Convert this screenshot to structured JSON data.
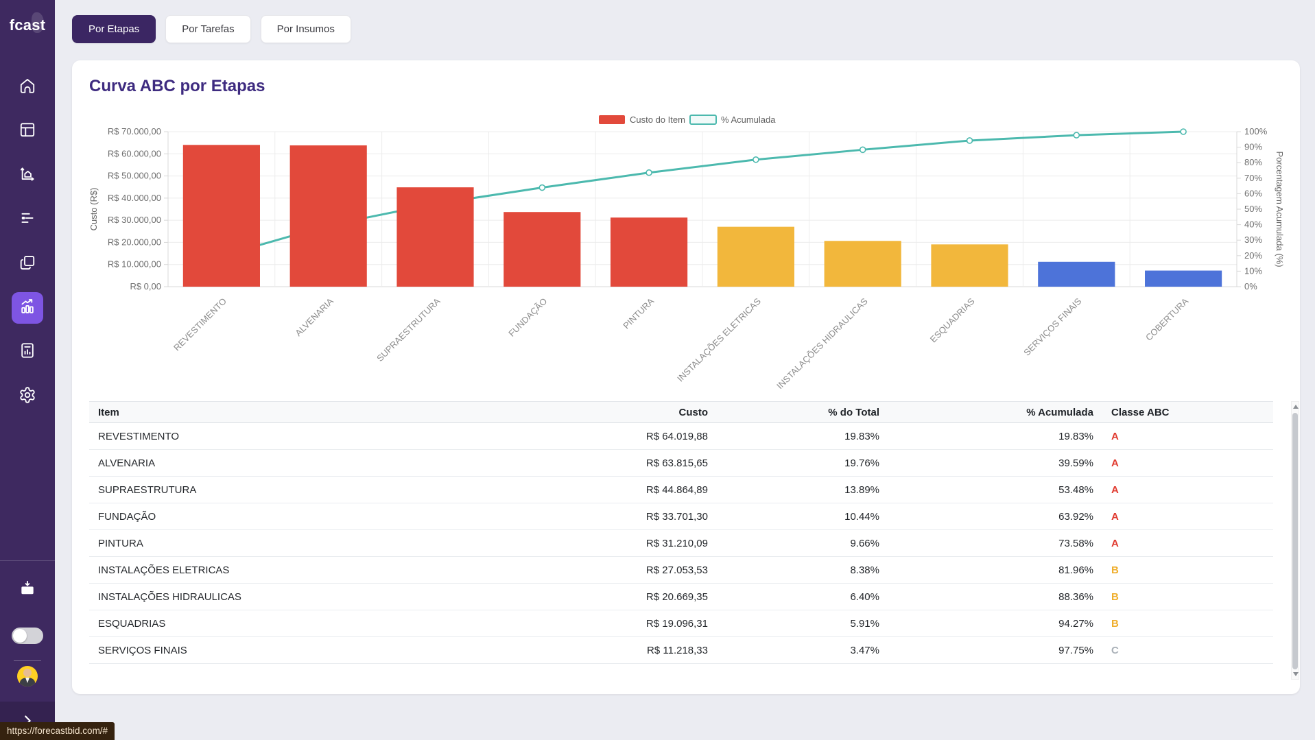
{
  "browser": {
    "status_url": "https://forecastbid.com/#"
  },
  "sidebar": {
    "logo": "fcast",
    "nav_items": [
      {
        "icon": "home"
      },
      {
        "icon": "layout"
      },
      {
        "icon": "planning"
      },
      {
        "icon": "gantt"
      },
      {
        "icon": "documents"
      },
      {
        "icon": "analytics",
        "active": true
      },
      {
        "icon": "report"
      },
      {
        "icon": "settings"
      }
    ],
    "bottom_items": [
      {
        "icon": "projects"
      }
    ]
  },
  "tabs": [
    {
      "label": "Por Etapas",
      "active": true
    },
    {
      "label": "Por Tarefas",
      "active": false
    },
    {
      "label": "Por Insumos",
      "active": false
    }
  ],
  "card": {
    "title": "Curva ABC por Etapas"
  },
  "chart_data": {
    "type": "pareto (bar + line)",
    "categories": [
      "REVESTIMENTO",
      "ALVENARIA",
      "SUPRAESTRUTURA",
      "FUNDAÇÃO",
      "PINTURA",
      "INSTALAÇÕES ELETRICAS",
      "INSTALAÇÕES HIDRAULICAS",
      "ESQUADRIAS",
      "SERVIÇOS FINAIS",
      "COBERTURA"
    ],
    "series": [
      {
        "name": "Custo do Item",
        "type": "bar",
        "values": [
          64019.88,
          63815.65,
          44864.89,
          33701.3,
          31210.09,
          27053.53,
          20669.35,
          19096.31,
          11218.33,
          7265.95
        ]
      },
      {
        "name": "% Acumulada",
        "type": "line",
        "values": [
          19.83,
          39.59,
          53.48,
          63.92,
          73.58,
          81.96,
          88.36,
          94.27,
          97.75,
          100
        ]
      }
    ],
    "bar_classes": [
      "A",
      "A",
      "A",
      "A",
      "A",
      "B",
      "B",
      "B",
      "C",
      "C"
    ],
    "class_colors": {
      "A": "#e2493b",
      "B": "#f2b73c",
      "C": "#4d73d9"
    },
    "line_color": "#4cb9ae",
    "left_axis": {
      "label": "Custo (R$)",
      "max": 70000,
      "tick_labels": [
        "R$ 0,00",
        "R$ 10.000,00",
        "R$ 20.000,00",
        "R$ 30.000,00",
        "R$ 40.000,00",
        "R$ 50.000,00",
        "R$ 60.000,00",
        "R$ 70.000,00"
      ]
    },
    "right_axis": {
      "label": "Porcentagem Acumulada (%)",
      "max": 100,
      "tick_labels": [
        "0%",
        "10%",
        "20%",
        "30%",
        "40%",
        "50%",
        "60%",
        "70%",
        "80%",
        "90%",
        "100%"
      ]
    },
    "legend": [
      "Custo do Item",
      "% Acumulada"
    ],
    "grid": true,
    "legend_position": "top-center"
  },
  "table": {
    "headers": [
      "Item",
      "Custo",
      "% do Total",
      "% Acumulada",
      "Classe ABC"
    ],
    "class_colors": {
      "A": "#e03a2f",
      "B": "#efae2c",
      "C": "#a9b0b7"
    },
    "rows": [
      {
        "item": "REVESTIMENTO",
        "custo": "R$ 64.019,88",
        "pct_total": "19.83%",
        "pct_acum": "19.83%",
        "classe": "A"
      },
      {
        "item": "ALVENARIA",
        "custo": "R$ 63.815,65",
        "pct_total": "19.76%",
        "pct_acum": "39.59%",
        "classe": "A"
      },
      {
        "item": "SUPRAESTRUTURA",
        "custo": "R$ 44.864,89",
        "pct_total": "13.89%",
        "pct_acum": "53.48%",
        "classe": "A"
      },
      {
        "item": "FUNDAÇÃO",
        "custo": "R$ 33.701,30",
        "pct_total": "10.44%",
        "pct_acum": "63.92%",
        "classe": "A"
      },
      {
        "item": "PINTURA",
        "custo": "R$ 31.210,09",
        "pct_total": "9.66%",
        "pct_acum": "73.58%",
        "classe": "A"
      },
      {
        "item": "INSTALAÇÕES ELETRICAS",
        "custo": "R$ 27.053,53",
        "pct_total": "8.38%",
        "pct_acum": "81.96%",
        "classe": "B"
      },
      {
        "item": "INSTALAÇÕES HIDRAULICAS",
        "custo": "R$ 20.669,35",
        "pct_total": "6.40%",
        "pct_acum": "88.36%",
        "classe": "B"
      },
      {
        "item": "ESQUADRIAS",
        "custo": "R$ 19.096,31",
        "pct_total": "5.91%",
        "pct_acum": "94.27%",
        "classe": "B"
      },
      {
        "item": "SERVIÇOS FINAIS",
        "custo": "R$ 11.218,33",
        "pct_total": "3.47%",
        "pct_acum": "97.75%",
        "classe": "C"
      }
    ]
  }
}
